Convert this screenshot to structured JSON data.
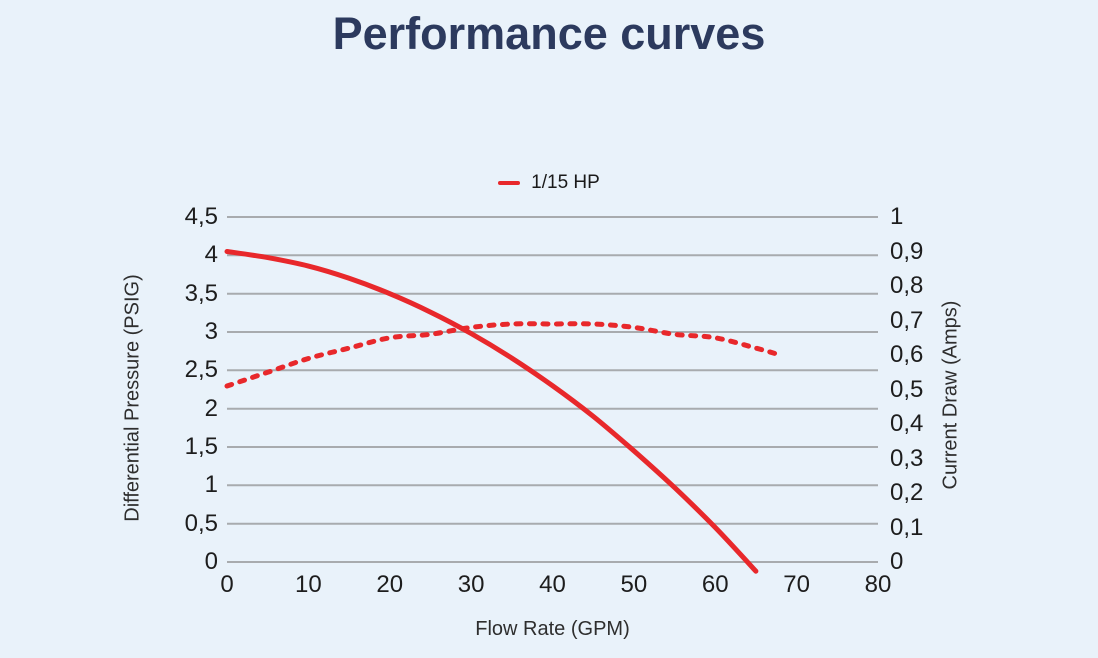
{
  "page": {
    "title": "Performance curves",
    "title_color": "#2c3a5e",
    "background": "#e9f2fa"
  },
  "chart_data": {
    "type": "line",
    "title": "Performance curves",
    "grid": true,
    "grid_color": "#a8abae",
    "legend_position": "top-center",
    "legend": [
      {
        "label": "1/15 HP",
        "color": "#e8282b"
      }
    ],
    "x_axis": {
      "label": "Flow Rate (GPM)",
      "min": 0,
      "max": 80,
      "ticks": [
        "0",
        "10",
        "20",
        "30",
        "40",
        "50",
        "60",
        "70",
        "80"
      ]
    },
    "y_left": {
      "label": "Differential Pressure (PSIG)",
      "min": 0,
      "max": 4.5,
      "ticks": [
        "4,5",
        "4",
        "3,5",
        "3",
        "2,5",
        "2",
        "1,5",
        "1",
        "0,5",
        "0"
      ]
    },
    "y_right": {
      "label": "Current Draw (Amps)",
      "min": 0,
      "max": 1,
      "ticks": [
        "1",
        "0,9",
        "0,8",
        "0,7",
        "0,6",
        "0,5",
        "0,4",
        "0,3",
        "0,2",
        "0,1",
        "0"
      ]
    },
    "series": [
      {
        "name": "1/15 HP differential pressure",
        "axis": "left",
        "style": "solid",
        "color": "#e8282b",
        "x": [
          0,
          5,
          10,
          15,
          20,
          25,
          30,
          35,
          40,
          45,
          50,
          55,
          60,
          65
        ],
        "y": [
          4.05,
          3.97,
          3.86,
          3.7,
          3.5,
          3.26,
          2.98,
          2.66,
          2.3,
          1.9,
          1.45,
          0.97,
          0.45,
          -0.12
        ]
      },
      {
        "name": "1/15 HP current draw",
        "axis": "right",
        "style": "dashed",
        "color": "#e8282b",
        "x": [
          0,
          5,
          10,
          15,
          20,
          25,
          30,
          35,
          40,
          45,
          50,
          55,
          60,
          65,
          68
        ],
        "y": [
          0.51,
          0.55,
          0.59,
          0.62,
          0.65,
          0.66,
          0.68,
          0.69,
          0.69,
          0.69,
          0.68,
          0.66,
          0.65,
          0.62,
          0.6
        ]
      }
    ]
  }
}
